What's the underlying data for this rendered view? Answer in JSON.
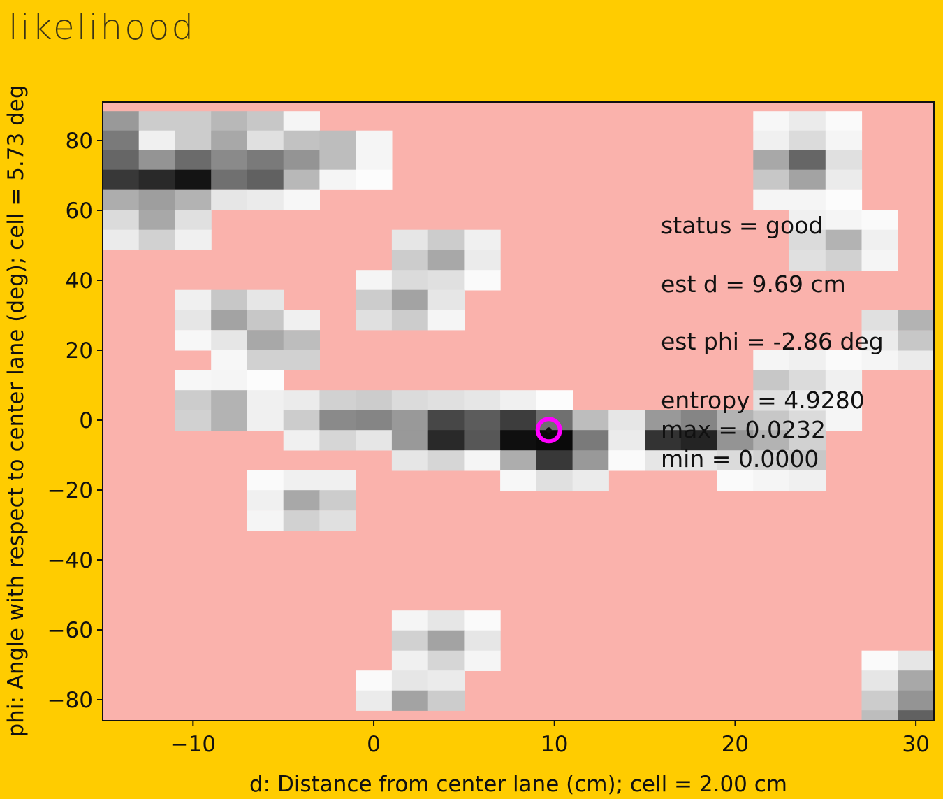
{
  "window": {
    "title": "likelihood"
  },
  "chart_data": {
    "type": "heatmap",
    "title": "likelihood",
    "xlabel": "d: Distance from center lane (cm); cell = 2.00 cm",
    "ylabel": "phi: Angle with respect to center lane (deg); cell = 5.73 deg",
    "xlim": [
      -15,
      31
    ],
    "ylim": [
      -86,
      91
    ],
    "x_ticks": [
      -10,
      0,
      10,
      20,
      30
    ],
    "x_tick_labels": [
      "−10",
      "0",
      "10",
      "20",
      "30"
    ],
    "y_ticks": [
      -80,
      -60,
      -40,
      -20,
      0,
      20,
      40,
      60,
      80
    ],
    "y_tick_labels": [
      "−80",
      "−60",
      "−40",
      "−20",
      "0",
      "20",
      "40",
      "60",
      "80"
    ],
    "cell_size": {
      "d_cm": 2.0,
      "phi_deg": 5.73
    },
    "colormap": "gray_r",
    "background_color": "#fab2ac",
    "cells": [
      [
        -15,
        85.5,
        0.4
      ],
      [
        -13,
        85.5,
        0.2
      ],
      [
        -11,
        85.5,
        0.2
      ],
      [
        -9,
        85.5,
        0.28
      ],
      [
        -7,
        85.5,
        0.22
      ],
      [
        -5,
        85.5,
        0.04
      ],
      [
        -15,
        80.0,
        0.52
      ],
      [
        -13,
        80.0,
        0.06
      ],
      [
        -11,
        80.0,
        0.2
      ],
      [
        -9,
        80.0,
        0.34
      ],
      [
        -7,
        80.0,
        0.12
      ],
      [
        -5,
        80.0,
        0.24
      ],
      [
        -3,
        80.0,
        0.26
      ],
      [
        -1,
        80.0,
        0.04
      ],
      [
        -15,
        74.5,
        0.6
      ],
      [
        -13,
        74.5,
        0.42
      ],
      [
        -11,
        74.5,
        0.58
      ],
      [
        -9,
        74.5,
        0.46
      ],
      [
        -7,
        74.5,
        0.52
      ],
      [
        -5,
        74.5,
        0.42
      ],
      [
        -3,
        74.5,
        0.26
      ],
      [
        -1,
        74.5,
        0.04
      ],
      [
        -15,
        68.8,
        0.78
      ],
      [
        -13,
        68.8,
        0.84
      ],
      [
        -11,
        68.8,
        0.92
      ],
      [
        -9,
        68.8,
        0.56
      ],
      [
        -7,
        68.8,
        0.62
      ],
      [
        -5,
        68.8,
        0.28
      ],
      [
        -3,
        68.8,
        0.04
      ],
      [
        -1,
        68.8,
        0.01
      ],
      [
        -15,
        63.0,
        0.32
      ],
      [
        -13,
        63.0,
        0.38
      ],
      [
        -11,
        63.0,
        0.3
      ],
      [
        -9,
        63.0,
        0.1
      ],
      [
        -7,
        63.0,
        0.08
      ],
      [
        -5,
        63.0,
        0.03
      ],
      [
        -15,
        57.3,
        0.14
      ],
      [
        -13,
        57.3,
        0.34
      ],
      [
        -11,
        57.3,
        0.12
      ],
      [
        -15,
        51.6,
        0.08
      ],
      [
        -13,
        51.6,
        0.18
      ],
      [
        -11,
        51.6,
        0.06
      ],
      [
        1,
        51.6,
        0.1
      ],
      [
        3,
        51.6,
        0.2
      ],
      [
        5,
        51.6,
        0.06
      ],
      [
        1,
        45.8,
        0.2
      ],
      [
        3,
        45.8,
        0.34
      ],
      [
        5,
        45.8,
        0.08
      ],
      [
        -1,
        40.1,
        0.04
      ],
      [
        1,
        40.1,
        0.14
      ],
      [
        3,
        40.1,
        0.12
      ],
      [
        5,
        40.1,
        0.02
      ],
      [
        -1,
        34.4,
        0.2
      ],
      [
        1,
        34.4,
        0.36
      ],
      [
        3,
        34.4,
        0.1
      ],
      [
        -1,
        28.7,
        0.12
      ],
      [
        1,
        28.7,
        0.2
      ],
      [
        3,
        28.7,
        0.04
      ],
      [
        -11,
        34.4,
        0.06
      ],
      [
        -9,
        34.4,
        0.22
      ],
      [
        -7,
        34.4,
        0.1
      ],
      [
        -11,
        28.7,
        0.1
      ],
      [
        -9,
        28.7,
        0.36
      ],
      [
        -7,
        28.7,
        0.22
      ],
      [
        -5,
        28.7,
        0.06
      ],
      [
        -11,
        22.9,
        0.03
      ],
      [
        -9,
        22.9,
        0.1
      ],
      [
        -7,
        22.9,
        0.34
      ],
      [
        -5,
        22.9,
        0.26
      ],
      [
        -9,
        17.2,
        0.03
      ],
      [
        -7,
        17.2,
        0.18
      ],
      [
        -5,
        17.2,
        0.18
      ],
      [
        -11,
        11.5,
        0.03
      ],
      [
        -9,
        11.5,
        0.04
      ],
      [
        -7,
        11.5,
        0.01
      ],
      [
        -11,
        5.7,
        0.2
      ],
      [
        -9,
        5.7,
        0.3
      ],
      [
        -7,
        5.7,
        0.06
      ],
      [
        -11,
        0.0,
        0.18
      ],
      [
        -9,
        0.0,
        0.3
      ],
      [
        -7,
        0.0,
        0.06
      ],
      [
        -5,
        5.7,
        0.08
      ],
      [
        -3,
        5.7,
        0.18
      ],
      [
        -1,
        5.7,
        0.2
      ],
      [
        1,
        5.7,
        0.14
      ],
      [
        3,
        5.7,
        0.12
      ],
      [
        5,
        5.7,
        0.1
      ],
      [
        7,
        5.7,
        0.06
      ],
      [
        9,
        5.7,
        0.01
      ],
      [
        -5,
        0.0,
        0.2
      ],
      [
        -3,
        0.0,
        0.46
      ],
      [
        -1,
        0.0,
        0.48
      ],
      [
        1,
        0.0,
        0.4
      ],
      [
        3,
        0.0,
        0.72
      ],
      [
        5,
        0.0,
        0.64
      ],
      [
        7,
        0.0,
        0.76
      ],
      [
        9,
        0.0,
        0.56
      ],
      [
        11,
        0.0,
        0.26
      ],
      [
        13,
        0.0,
        0.1
      ],
      [
        15,
        0.0,
        0.4
      ],
      [
        17,
        0.0,
        0.48
      ],
      [
        19,
        0.0,
        0.3
      ],
      [
        21,
        0.0,
        0.22
      ],
      [
        23,
        0.0,
        0.14
      ],
      [
        25,
        0.0,
        0.04
      ],
      [
        -5,
        -5.7,
        0.06
      ],
      [
        -3,
        -5.7,
        0.16
      ],
      [
        -1,
        -5.7,
        0.1
      ],
      [
        1,
        -5.7,
        0.4
      ],
      [
        3,
        -5.7,
        0.84
      ],
      [
        5,
        -5.7,
        0.66
      ],
      [
        7,
        -5.7,
        0.94
      ],
      [
        9,
        -5.7,
        0.96
      ],
      [
        11,
        -5.7,
        0.52
      ],
      [
        13,
        -5.7,
        0.08
      ],
      [
        15,
        -5.7,
        0.8
      ],
      [
        17,
        -5.7,
        0.86
      ],
      [
        19,
        -5.7,
        0.42
      ],
      [
        21,
        -5.7,
        0.3
      ],
      [
        23,
        -5.7,
        0.18
      ],
      [
        1,
        -11.5,
        0.1
      ],
      [
        3,
        -11.5,
        0.16
      ],
      [
        5,
        -11.5,
        0.04
      ],
      [
        7,
        -11.5,
        0.32
      ],
      [
        9,
        -11.5,
        0.78
      ],
      [
        11,
        -11.5,
        0.4
      ],
      [
        13,
        -11.5,
        0.02
      ],
      [
        15,
        -11.5,
        0.1
      ],
      [
        17,
        -11.5,
        0.1
      ],
      [
        19,
        -11.5,
        0.14
      ],
      [
        21,
        -11.5,
        0.18
      ],
      [
        23,
        -11.5,
        0.22
      ],
      [
        7,
        -17.2,
        0.03
      ],
      [
        9,
        -17.2,
        0.12
      ],
      [
        11,
        -17.2,
        0.08
      ],
      [
        19,
        -17.2,
        0.02
      ],
      [
        21,
        -17.2,
        0.04
      ],
      [
        23,
        -17.2,
        0.06
      ],
      [
        21,
        17.2,
        0.04
      ],
      [
        23,
        17.2,
        0.06
      ],
      [
        25,
        17.2,
        0.02
      ],
      [
        27,
        17.2,
        0.04
      ],
      [
        29,
        17.2,
        0.08
      ],
      [
        21,
        11.5,
        0.22
      ],
      [
        23,
        11.5,
        0.14
      ],
      [
        25,
        11.5,
        0.06
      ],
      [
        21,
        5.7,
        0.12
      ],
      [
        23,
        5.7,
        0.08
      ],
      [
        25,
        5.7,
        0.04
      ],
      [
        27,
        22.9,
        0.08
      ],
      [
        29,
        22.9,
        0.22
      ],
      [
        27,
        28.7,
        0.12
      ],
      [
        29,
        28.7,
        0.3
      ],
      [
        21,
        85.5,
        0.03
      ],
      [
        23,
        85.5,
        0.08
      ],
      [
        25,
        85.5,
        0.02
      ],
      [
        21,
        80.0,
        0.06
      ],
      [
        23,
        80.0,
        0.14
      ],
      [
        25,
        80.0,
        0.04
      ],
      [
        21,
        74.5,
        0.34
      ],
      [
        23,
        74.5,
        0.6
      ],
      [
        25,
        74.5,
        0.12
      ],
      [
        21,
        68.8,
        0.22
      ],
      [
        23,
        68.8,
        0.36
      ],
      [
        25,
        68.8,
        0.08
      ],
      [
        21,
        63.0,
        0.04
      ],
      [
        23,
        63.0,
        0.04
      ],
      [
        25,
        63.0,
        0.01
      ],
      [
        23,
        57.3,
        0.06
      ],
      [
        25,
        57.3,
        0.04
      ],
      [
        27,
        57.3,
        0.02
      ],
      [
        23,
        51.6,
        0.14
      ],
      [
        25,
        51.6,
        0.3
      ],
      [
        27,
        51.6,
        0.06
      ],
      [
        23,
        45.8,
        0.12
      ],
      [
        25,
        45.8,
        0.18
      ],
      [
        27,
        45.8,
        0.04
      ],
      [
        -7,
        -17.2,
        0.02
      ],
      [
        -5,
        -17.2,
        0.06
      ],
      [
        -3,
        -17.2,
        0.06
      ],
      [
        -7,
        -22.9,
        0.06
      ],
      [
        -5,
        -22.9,
        0.34
      ],
      [
        -3,
        -22.9,
        0.2
      ],
      [
        -7,
        -28.7,
        0.04
      ],
      [
        -5,
        -28.7,
        0.18
      ],
      [
        -3,
        -28.7,
        0.12
      ],
      [
        1,
        -57.3,
        0.04
      ],
      [
        3,
        -57.3,
        0.1
      ],
      [
        5,
        -57.3,
        0.02
      ],
      [
        1,
        -63.0,
        0.18
      ],
      [
        3,
        -63.0,
        0.36
      ],
      [
        5,
        -63.0,
        0.1
      ],
      [
        1,
        -68.8,
        0.06
      ],
      [
        3,
        -68.8,
        0.16
      ],
      [
        5,
        -68.8,
        0.04
      ],
      [
        -1,
        -74.5,
        0.02
      ],
      [
        1,
        -74.5,
        0.1
      ],
      [
        3,
        -74.5,
        0.08
      ],
      [
        -1,
        -80.2,
        0.08
      ],
      [
        1,
        -80.2,
        0.36
      ],
      [
        3,
        -80.2,
        0.2
      ],
      [
        27,
        -68.8,
        0.02
      ],
      [
        29,
        -68.8,
        0.1
      ],
      [
        27,
        -74.5,
        0.1
      ],
      [
        29,
        -74.5,
        0.34
      ],
      [
        27,
        -80.2,
        0.2
      ],
      [
        29,
        -80.2,
        0.42
      ],
      [
        27,
        -85.9,
        0.26
      ],
      [
        29,
        -85.9,
        0.62
      ]
    ],
    "estimate": {
      "d": 9.69,
      "phi": -2.86,
      "color": "#ff00ff"
    },
    "annotations": [
      "status = good",
      "est d = 9.69 cm",
      "est phi = -2.86 deg",
      "entropy = 4.9280",
      "max = 0.0232",
      "min = 0.0000"
    ],
    "grid": false,
    "legend": "none"
  }
}
